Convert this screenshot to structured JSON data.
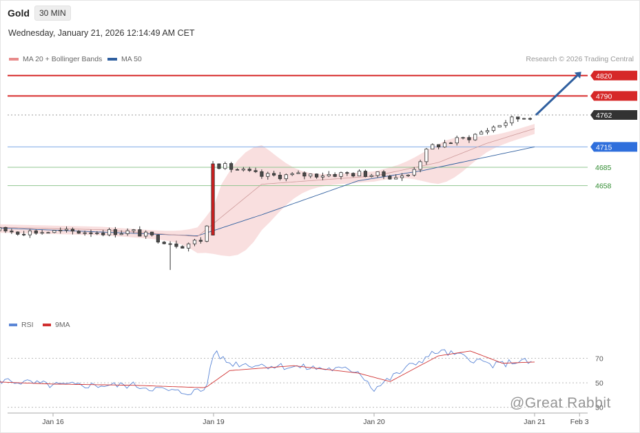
{
  "header": {
    "instrument": "Gold",
    "timeframe": "30 MIN",
    "datetime": "Wednesday, January 21, 2026 12:14:49 AM CET"
  },
  "legend": {
    "ma20": {
      "label": "MA 20 + Bollinger Bands",
      "color": "#e88b8b"
    },
    "ma50": {
      "label": "MA 50",
      "color": "#2f5f9f"
    }
  },
  "credit": "Research © 2026 Trading Central",
  "rsi_legend": {
    "rsi": {
      "label": "RSI",
      "color": "#5b86d6"
    },
    "ma9": {
      "label": "9MA",
      "color": "#d03030"
    }
  },
  "watermark": "@Great Rabbit",
  "colors": {
    "up": "#ffffff",
    "down": "#4a4a4a",
    "wick": "#333333",
    "candle_accent": "#cc1f1f",
    "band": "#f7d4d4"
  },
  "chart_data": [
    {
      "type": "candlestick",
      "title": "Gold",
      "y_axis_side": "right",
      "ylim": [
        4470,
        4835
      ],
      "x_ticks": [
        {
          "label": "Jan 16",
          "t": 0.0
        },
        {
          "label": "Jan 19",
          "t": 1.0
        },
        {
          "label": "Jan 20",
          "t": 2.0
        },
        {
          "label": "Jan 21",
          "t": 3.0
        },
        {
          "label": "Feb 3",
          "t": 3.28
        }
      ],
      "levels": [
        {
          "value": 4820,
          "label": "4820",
          "kind": "resistance",
          "color": "#d62828"
        },
        {
          "value": 4790,
          "label": "4790",
          "kind": "resistance",
          "color": "#d62828"
        },
        {
          "value": 4762,
          "label": "4762",
          "kind": "last-price",
          "color": "#333333"
        },
        {
          "value": 4715,
          "label": "4715",
          "kind": "pivot",
          "color": "#2f6fdc"
        },
        {
          "value": 4685,
          "label": "4685",
          "kind": "support",
          "color": "#2e8a2e"
        },
        {
          "value": 4658,
          "label": "4658",
          "kind": "support",
          "color": "#2e8a2e"
        }
      ],
      "forecast_arrow": {
        "from": {
          "t": 3.0,
          "value": 4762
        },
        "to": {
          "t": 3.3,
          "value": 4820
        }
      },
      "ohlc_key_points": [
        {
          "t": -0.6,
          "close": 4598
        },
        {
          "t": -0.2,
          "close": 4590
        },
        {
          "t": 0.5,
          "close": 4590
        },
        {
          "t": 0.8,
          "close": 4570
        },
        {
          "t": 0.95,
          "close": 4580
        },
        {
          "t": 1.0,
          "open": 4585,
          "high": 4700,
          "low": 4584,
          "close": 4690
        },
        {
          "t": 1.3,
          "close": 4672
        },
        {
          "t": 1.9,
          "close": 4676
        },
        {
          "t": 2.2,
          "close": 4670
        },
        {
          "t": 2.35,
          "close": 4715
        },
        {
          "t": 2.6,
          "close": 4730
        },
        {
          "t": 2.85,
          "close": 4755
        },
        {
          "t": 3.0,
          "close": 4762
        }
      ],
      "ma20": [
        {
          "t": -0.6,
          "value": 4598
        },
        {
          "t": 0.3,
          "value": 4593
        },
        {
          "t": 0.9,
          "value": 4583
        },
        {
          "t": 1.3,
          "value": 4660
        },
        {
          "t": 2.0,
          "value": 4672
        },
        {
          "t": 2.4,
          "value": 4692
        },
        {
          "t": 2.7,
          "value": 4720
        },
        {
          "t": 3.0,
          "value": 4742
        }
      ],
      "ma50": [
        {
          "t": -0.6,
          "value": 4598
        },
        {
          "t": 0.9,
          "value": 4584
        },
        {
          "t": 1.3,
          "value": 4615
        },
        {
          "t": 1.9,
          "value": 4665
        },
        {
          "t": 2.3,
          "value": 4680
        },
        {
          "t": 2.7,
          "value": 4700
        },
        {
          "t": 3.0,
          "value": 4715
        }
      ]
    },
    {
      "type": "line",
      "title": "RSI",
      "ylim": [
        27,
        90
      ],
      "reference_lines": [
        70,
        50,
        30
      ],
      "tick_labels": [
        "70",
        "50",
        "30"
      ],
      "series": [
        {
          "name": "RSI",
          "values": [
            {
              "t": -0.6,
              "value": 50
            },
            {
              "t": -0.3,
              "value": 52
            },
            {
              "t": 0.0,
              "value": 48
            },
            {
              "t": 0.5,
              "value": 48
            },
            {
              "t": 0.8,
              "value": 42
            },
            {
              "t": 0.95,
              "value": 44
            },
            {
              "t": 1.0,
              "value": 75
            },
            {
              "t": 1.1,
              "value": 66
            },
            {
              "t": 1.5,
              "value": 63
            },
            {
              "t": 1.9,
              "value": 60
            },
            {
              "t": 2.0,
              "value": 45
            },
            {
              "t": 2.2,
              "value": 62
            },
            {
              "t": 2.4,
              "value": 76
            },
            {
              "t": 2.6,
              "value": 70
            },
            {
              "t": 2.75,
              "value": 64
            },
            {
              "t": 2.9,
              "value": 68
            },
            {
              "t": 3.0,
              "value": 66
            }
          ]
        },
        {
          "name": "9MA",
          "values": [
            {
              "t": -0.6,
              "value": 52
            },
            {
              "t": 0.0,
              "value": 49
            },
            {
              "t": 0.5,
              "value": 48
            },
            {
              "t": 0.95,
              "value": 46
            },
            {
              "t": 1.1,
              "value": 60
            },
            {
              "t": 1.5,
              "value": 64
            },
            {
              "t": 1.9,
              "value": 58
            },
            {
              "t": 2.1,
              "value": 51
            },
            {
              "t": 2.4,
              "value": 72
            },
            {
              "t": 2.6,
              "value": 76
            },
            {
              "t": 2.8,
              "value": 66
            },
            {
              "t": 3.0,
              "value": 67
            }
          ]
        }
      ]
    }
  ]
}
